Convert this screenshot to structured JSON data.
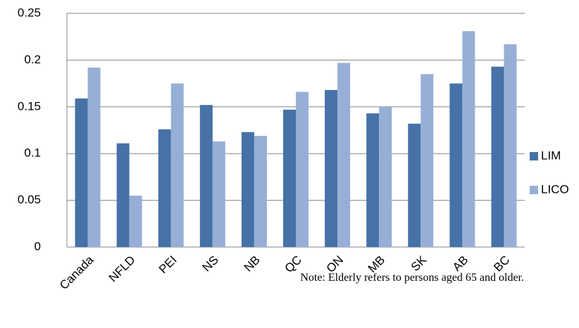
{
  "chart_data": {
    "type": "bar",
    "categories": [
      "Canada",
      "NFLD",
      "PEI",
      "NS",
      "NB",
      "QC",
      "ON",
      "MB",
      "SK",
      "AB",
      "BC"
    ],
    "series": [
      {
        "name": "LIM",
        "color": "#4672a8",
        "values": [
          0.159,
          0.111,
          0.126,
          0.152,
          0.123,
          0.147,
          0.168,
          0.143,
          0.132,
          0.175,
          0.193
        ]
      },
      {
        "name": "LICO",
        "color": "#97afd7",
        "values": [
          0.192,
          0.055,
          0.175,
          0.113,
          0.119,
          0.166,
          0.197,
          0.15,
          0.185,
          0.231,
          0.217
        ]
      }
    ],
    "ylim": [
      0,
      0.25
    ],
    "yticks": [
      0,
      0.05,
      0.1,
      0.15,
      0.2,
      0.25
    ],
    "grid": true,
    "legend": "right",
    "annotation": "Note: Elderly refers to persons aged 65 and older."
  }
}
